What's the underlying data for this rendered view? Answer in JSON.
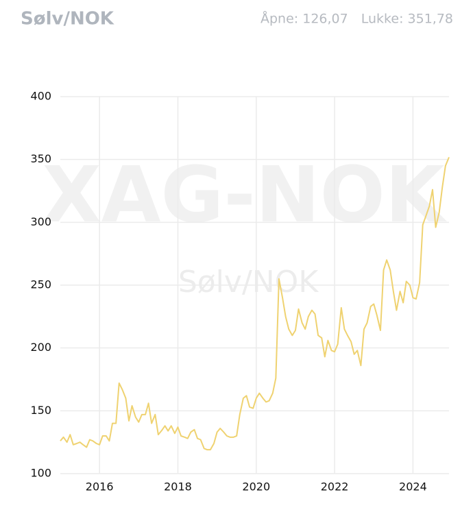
{
  "chart_data": {
    "type": "line",
    "title": "Sølv/NOK",
    "open_label": "Åpne: 126,07",
    "close_label": "Lukke: 351,78",
    "watermark": "XAG-NOK",
    "watermark_subtitle": "Sølv/NOK",
    "color": "#efd270",
    "grid": true,
    "xlim": [
      2015,
      2024.92
    ],
    "xticks": [
      2016,
      2018,
      2020,
      2022,
      2024
    ],
    "ylim": [
      100,
      400
    ],
    "yticks": [
      100,
      150,
      200,
      250,
      300,
      350,
      400
    ],
    "x": [
      2015,
      2015.08,
      2015.17,
      2015.25,
      2015.33,
      2015.42,
      2015.5,
      2015.58,
      2015.67,
      2015.75,
      2015.83,
      2015.92,
      2016,
      2016.08,
      2016.17,
      2016.25,
      2016.33,
      2016.42,
      2016.5,
      2016.58,
      2016.67,
      2016.75,
      2016.83,
      2016.92,
      2017,
      2017.08,
      2017.17,
      2017.25,
      2017.33,
      2017.42,
      2017.5,
      2017.58,
      2017.67,
      2017.75,
      2017.83,
      2017.92,
      2018,
      2018.08,
      2018.17,
      2018.25,
      2018.33,
      2018.42,
      2018.5,
      2018.58,
      2018.67,
      2018.75,
      2018.83,
      2018.92,
      2019,
      2019.08,
      2019.17,
      2019.25,
      2019.33,
      2019.42,
      2019.5,
      2019.58,
      2019.67,
      2019.75,
      2019.83,
      2019.92,
      2020,
      2020.08,
      2020.17,
      2020.25,
      2020.33,
      2020.42,
      2020.5,
      2020.58,
      2020.67,
      2020.75,
      2020.83,
      2020.92,
      2021,
      2021.08,
      2021.17,
      2021.25,
      2021.33,
      2021.42,
      2021.5,
      2021.58,
      2021.67,
      2021.75,
      2021.83,
      2021.92,
      2022,
      2022.08,
      2022.17,
      2022.25,
      2022.33,
      2022.42,
      2022.5,
      2022.58,
      2022.67,
      2022.75,
      2022.83,
      2022.92,
      2023,
      2023.08,
      2023.17,
      2023.25,
      2023.33,
      2023.42,
      2023.5,
      2023.58,
      2023.67,
      2023.75,
      2023.83,
      2023.92,
      2024,
      2024.08,
      2024.17,
      2024.25,
      2024.33,
      2024.42,
      2024.5,
      2024.58,
      2024.67,
      2024.75,
      2024.83,
      2024.92
    ],
    "values": [
      126.07,
      129,
      125,
      131,
      123,
      124,
      125,
      123,
      121,
      127,
      126,
      124,
      123,
      130,
      130,
      126,
      140,
      140,
      172,
      167,
      160,
      142,
      154,
      145,
      141,
      147,
      147,
      156,
      140,
      147,
      131,
      134,
      138,
      134,
      138,
      132,
      137,
      130,
      129,
      128,
      133,
      135,
      128,
      127,
      120,
      119,
      119,
      124,
      133,
      136,
      133,
      130,
      129,
      129,
      130,
      147,
      160,
      162,
      153,
      152,
      160,
      164,
      160,
      157,
      158,
      164,
      176,
      255,
      240,
      225,
      215,
      210,
      214,
      231,
      220,
      215,
      225,
      230,
      227,
      210,
      208,
      193,
      206,
      198,
      197,
      203,
      232,
      215,
      210,
      205,
      195,
      198,
      186,
      215,
      220,
      233,
      235,
      226,
      214,
      262,
      270,
      262,
      245,
      230,
      245,
      236,
      253,
      250,
      240,
      239,
      252,
      298,
      305,
      313,
      326,
      296,
      308,
      328,
      345,
      351.78
    ]
  }
}
